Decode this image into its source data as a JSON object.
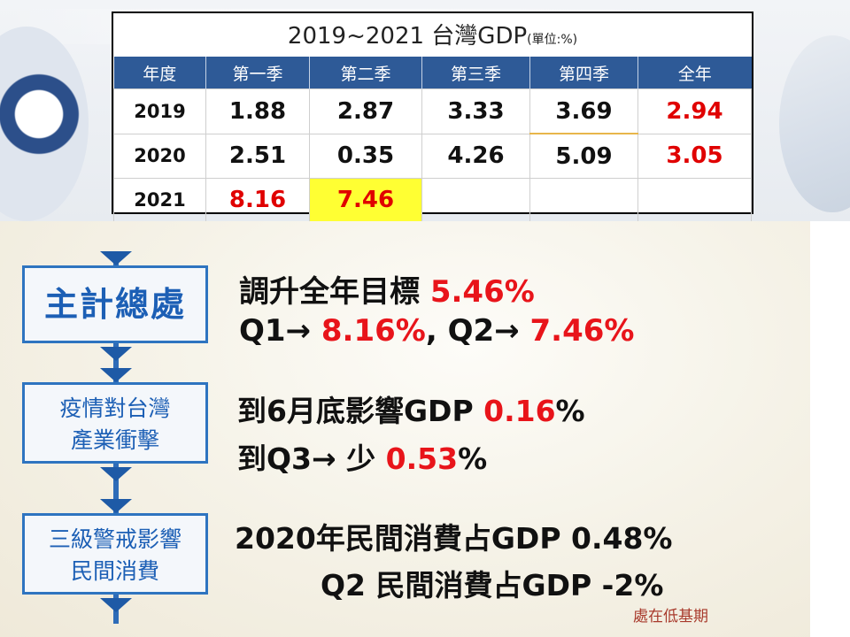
{
  "table": {
    "title": "2019~2021 台灣GDP",
    "unit": "(單位:%)",
    "headers": [
      "年度",
      "第一季",
      "第二季",
      "第三季",
      "第四季",
      "全年"
    ],
    "rows": [
      {
        "year": "2019",
        "q1": "1.88",
        "q2": "2.87",
        "q3": "3.33",
        "q4": "3.69",
        "annual": "2.94"
      },
      {
        "year": "2020",
        "q1": "2.51",
        "q2": "0.35",
        "q3": "4.26",
        "q4": "5.09",
        "annual": "3.05"
      },
      {
        "year": "2021",
        "q1": "8.16",
        "q2": "7.46",
        "q3": "",
        "q4": "",
        "annual": ""
      }
    ]
  },
  "sections": {
    "s1": {
      "box": "主計總處",
      "line1_text": "調升全年目標 ",
      "line1_value": "5.46%",
      "line2_a": "Q1→ ",
      "line2_b": "8.16%",
      "line2_c": ", Q2→ ",
      "line2_d": "7.46%"
    },
    "s2": {
      "box_line1": "疫情對台灣",
      "box_line2": "產業衝擊",
      "line1_text": "到6月底影響GDP ",
      "line1_value": "0.16",
      "line1_suffix": "%",
      "line2_text": "到Q3→ 少 ",
      "line2_value": "0.53",
      "line2_suffix": "%"
    },
    "s3": {
      "box_line1": "三級警戒影響",
      "box_line2": "民間消費",
      "line1": "2020年民間消費占GDP 0.48%",
      "line2": "Q2 民間消費占GDP -2%",
      "note": "處在低基期"
    }
  },
  "colors": {
    "accent_blue": "#2e74c0",
    "highlight_red": "#e8141a",
    "highlight_yellow": "#ffff33"
  }
}
